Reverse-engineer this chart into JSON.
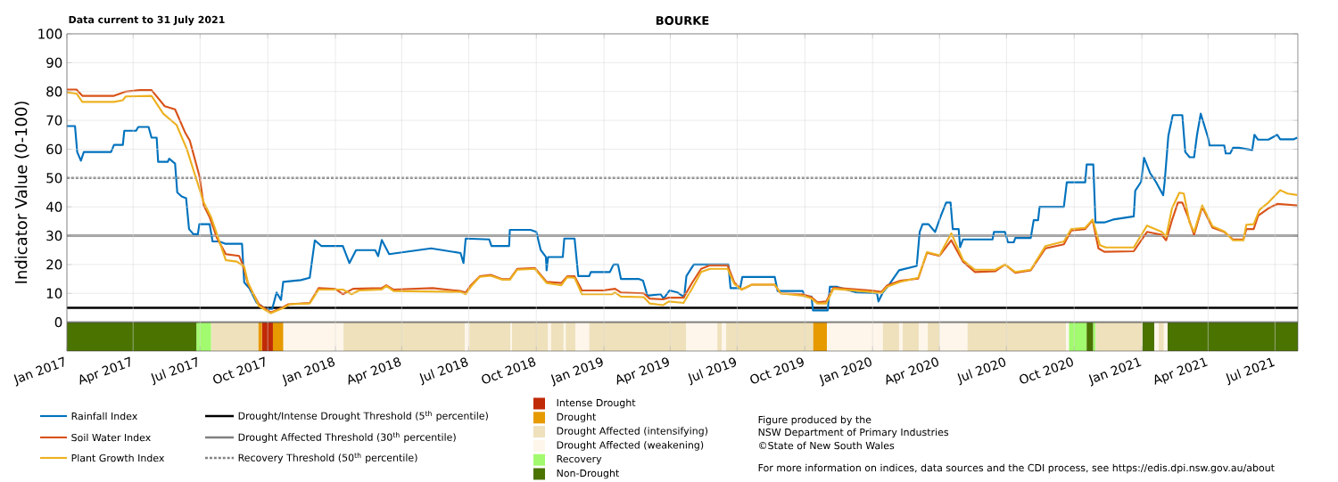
{
  "chart_data": {
    "type": "line",
    "title": "BOURKE",
    "ylabel": "Indicator Value (0-100)",
    "xlim": [
      "2017-01-01",
      "2021-08-01"
    ],
    "ylim": [
      -10,
      100
    ],
    "xticks": [
      {
        "value": "2017-01-01",
        "label": "Jan 2017"
      },
      {
        "value": "2017-04-01",
        "label": "Apr 2017"
      },
      {
        "value": "2017-07-01",
        "label": "Jul 2017"
      },
      {
        "value": "2017-10-01",
        "label": "Oct 2017"
      },
      {
        "value": "2018-01-01",
        "label": "Jan 2018"
      },
      {
        "value": "2018-04-01",
        "label": "Apr 2018"
      },
      {
        "value": "2018-07-01",
        "label": "Jul 2018"
      },
      {
        "value": "2018-10-01",
        "label": "Oct 2018"
      },
      {
        "value": "2019-01-01",
        "label": "Jan 2019"
      },
      {
        "value": "2019-04-01",
        "label": "Apr 2019"
      },
      {
        "value": "2019-07-01",
        "label": "Jul 2019"
      },
      {
        "value": "2019-10-01",
        "label": "Oct 2019"
      },
      {
        "value": "2020-01-01",
        "label": "Jan 2020"
      },
      {
        "value": "2020-04-01",
        "label": "Apr 2020"
      },
      {
        "value": "2020-07-01",
        "label": "Jul 2020"
      },
      {
        "value": "2020-10-01",
        "label": "Oct 2020"
      },
      {
        "value": "2021-01-01",
        "label": "Jan 2021"
      },
      {
        "value": "2021-04-01",
        "label": "Apr 2021"
      },
      {
        "value": "2021-07-01",
        "label": "Jul 2021"
      }
    ],
    "yticks": [
      0,
      10,
      20,
      30,
      40,
      50,
      60,
      70,
      80,
      90,
      100
    ],
    "grid": true,
    "legend": "bottom",
    "marker": "none",
    "series": [
      {
        "name": "Rainfall Index",
        "color": "#0072bd",
        "x": [
          "2017-01-01",
          "2017-01-12",
          "2017-01-15",
          "2017-01-20",
          "2017-01-24",
          "2017-03-02",
          "2017-03-06",
          "2017-03-18",
          "2017-03-20",
          "2017-04-05",
          "2017-04-08",
          "2017-04-22",
          "2017-04-26",
          "2017-05-03",
          "2017-05-05",
          "2017-05-18",
          "2017-05-20",
          "2017-05-28",
          "2017-05-31",
          "2017-06-06",
          "2017-06-12",
          "2017-06-16",
          "2017-06-22",
          "2017-06-28",
          "2017-06-30",
          "2017-07-14",
          "2017-07-18",
          "2017-07-27",
          "2017-08-04",
          "2017-08-27",
          "2017-08-30",
          "2017-09-06",
          "2017-09-16",
          "2017-09-28",
          "2017-10-07",
          "2017-10-13",
          "2017-10-19",
          "2017-10-22",
          "2017-11-15",
          "2017-11-27",
          "2017-11-30",
          "2017-12-04",
          "2017-12-13",
          "2018-01-11",
          "2018-01-20",
          "2018-01-29",
          "2018-02-24",
          "2018-02-28",
          "2018-03-05",
          "2018-03-15",
          "2018-05-11",
          "2018-06-20",
          "2018-06-24",
          "2018-06-27",
          "2018-07-29",
          "2018-08-01",
          "2018-08-25",
          "2018-08-26",
          "2018-09-23",
          "2018-10-01",
          "2018-10-07",
          "2018-10-14",
          "2018-10-15",
          "2018-10-17",
          "2018-11-06",
          "2018-11-08",
          "2018-11-22",
          "2018-11-27",
          "2018-12-12",
          "2018-12-14",
          "2019-01-09",
          "2019-01-14",
          "2019-01-20",
          "2019-01-24",
          "2019-02-17",
          "2019-02-23",
          "2019-03-01",
          "2019-03-19",
          "2019-03-23",
          "2019-03-31",
          "2019-04-11",
          "2019-04-20",
          "2019-04-23",
          "2019-05-03",
          "2019-06-19",
          "2019-06-22",
          "2019-07-05",
          "2019-07-08",
          "2019-08-21",
          "2019-08-25",
          "2019-09-28",
          "2019-10-01",
          "2019-10-10",
          "2019-10-12",
          "2019-11-01",
          "2019-11-04",
          "2019-11-13",
          "2019-12-10",
          "2020-01-07",
          "2020-01-09",
          "2020-01-15",
          "2020-01-23",
          "2020-02-06",
          "2020-03-01",
          "2020-03-05",
          "2020-03-09",
          "2020-03-17",
          "2020-03-26",
          "2020-04-03",
          "2020-04-10",
          "2020-04-16",
          "2020-04-19",
          "2020-04-27",
          "2020-04-29",
          "2020-05-03",
          "2020-06-12",
          "2020-06-14",
          "2020-06-29",
          "2020-07-03",
          "2020-07-11",
          "2020-07-13",
          "2020-08-03",
          "2020-08-07",
          "2020-08-13",
          "2020-08-15",
          "2020-09-17",
          "2020-09-21",
          "2020-10-16",
          "2020-10-18",
          "2020-10-27",
          "2020-10-30",
          "2020-11-11",
          "2020-11-23",
          "2020-12-21",
          "2020-12-23",
          "2020-12-31",
          "2021-01-04",
          "2021-01-12",
          "2021-01-20",
          "2021-01-30",
          "2021-02-01",
          "2021-02-06",
          "2021-02-12",
          "2021-02-25",
          "2021-03-01",
          "2021-03-07",
          "2021-03-13",
          "2021-03-17",
          "2021-03-22",
          "2021-04-01",
          "2021-04-03",
          "2021-04-23",
          "2021-04-25",
          "2021-05-01",
          "2021-05-05",
          "2021-05-13",
          "2021-05-31",
          "2021-06-03",
          "2021-06-08",
          "2021-06-22",
          "2021-07-04",
          "2021-07-08",
          "2021-07-26",
          "2021-07-31"
        ],
        "values": [
          68,
          68,
          59,
          56,
          59,
          59,
          61.5,
          61.5,
          66.4,
          66.4,
          67.7,
          67.7,
          64,
          64,
          55.6,
          55.6,
          56.7,
          55,
          45,
          43.6,
          43,
          32.3,
          30.5,
          30.5,
          34,
          34,
          28,
          28,
          27.2,
          27.2,
          13.8,
          11.8,
          6.7,
          4.6,
          4.6,
          10.3,
          7.7,
          14,
          14.6,
          15.4,
          21,
          28.4,
          26.4,
          26.4,
          20.5,
          25,
          25,
          22.9,
          28.5,
          23.6,
          25.6,
          24,
          20.5,
          29,
          28.7,
          26.4,
          26.4,
          32,
          32,
          31.3,
          25,
          22.6,
          18,
          22.6,
          22.6,
          29,
          29,
          16,
          16,
          17.4,
          17.4,
          20,
          20,
          15,
          15,
          14.4,
          9.2,
          9.7,
          8.2,
          11,
          10.3,
          8.7,
          16,
          20,
          20,
          11.8,
          11.8,
          15.7,
          15.7,
          10.8,
          10.8,
          8.9,
          8.9,
          4.1,
          4.1,
          12.3,
          12.3,
          10.3,
          10,
          7.2,
          10.3,
          12.8,
          18,
          19.5,
          31.3,
          34,
          34,
          31.3,
          37,
          41.5,
          41.5,
          32.3,
          32.3,
          26,
          28.7,
          28.7,
          31.3,
          31.3,
          27.7,
          27.7,
          29.2,
          29.2,
          35.4,
          35.4,
          40,
          40,
          48.5,
          48.5,
          54.7,
          54.7,
          34.6,
          34.6,
          35.6,
          36.7,
          45.6,
          48.7,
          57,
          51.8,
          48.7,
          44,
          48.7,
          64.6,
          71.8,
          71.8,
          59,
          57.2,
          57.2,
          65,
          72.3,
          64,
          61.3,
          61.3,
          58.5,
          58.5,
          60.5,
          60.5,
          59.7,
          65,
          63.3,
          63.3,
          65,
          63.4,
          63.4,
          64
        ]
      },
      {
        "name": "Soil Water Index",
        "color": "#d95319",
        "x": [
          "2017-01-01",
          "2017-01-14",
          "2017-01-22",
          "2017-03-06",
          "2017-03-22",
          "2017-04-10",
          "2017-04-26",
          "2017-05-14",
          "2017-05-28",
          "2017-06-11",
          "2017-06-17",
          "2017-06-30",
          "2017-07-06",
          "2017-07-14",
          "2017-07-24",
          "2017-08-05",
          "2017-08-23",
          "2017-08-28",
          "2017-09-04",
          "2017-09-19",
          "2017-10-05",
          "2017-10-21",
          "2017-10-29",
          "2017-11-27",
          "2017-12-09",
          "2018-01-01",
          "2018-01-11",
          "2018-01-25",
          "2018-03-05",
          "2018-03-11",
          "2018-03-21",
          "2018-05-13",
          "2018-06-20",
          "2018-06-27",
          "2018-07-04",
          "2018-07-16",
          "2018-07-31",
          "2018-08-16",
          "2018-08-26",
          "2018-09-05",
          "2018-09-29",
          "2018-10-15",
          "2018-11-04",
          "2018-11-12",
          "2018-11-22",
          "2018-12-02",
          "2018-12-31",
          "2019-01-16",
          "2019-01-24",
          "2019-02-24",
          "2019-03-04",
          "2019-03-22",
          "2019-03-30",
          "2019-04-19",
          "2019-05-01",
          "2019-05-13",
          "2019-05-25",
          "2019-06-18",
          "2019-06-27",
          "2019-07-07",
          "2019-07-21",
          "2019-08-21",
          "2019-08-29",
          "2019-09-28",
          "2019-10-10",
          "2019-10-18",
          "2019-10-30",
          "2019-11-09",
          "2019-12-29",
          "2020-01-13",
          "2020-01-21",
          "2020-02-08",
          "2020-03-03",
          "2020-03-15",
          "2020-04-01",
          "2020-04-17",
          "2020-05-03",
          "2020-05-19",
          "2020-06-16",
          "2020-06-29",
          "2020-07-13",
          "2020-08-03",
          "2020-08-23",
          "2020-09-17",
          "2020-09-27",
          "2020-10-16",
          "2020-10-26",
          "2020-11-03",
          "2020-11-11",
          "2020-12-21",
          "2021-01-08",
          "2021-01-28",
          "2021-02-03",
          "2021-02-11",
          "2021-02-19",
          "2021-02-25",
          "2021-03-05",
          "2021-03-13",
          "2021-03-24",
          "2021-04-07",
          "2021-04-23",
          "2021-05-05",
          "2021-05-19",
          "2021-05-23",
          "2021-06-02",
          "2021-06-08",
          "2021-06-22",
          "2021-07-04",
          "2021-07-31"
        ],
        "values": [
          80.7,
          80.7,
          78.5,
          78.5,
          80,
          80.5,
          80.5,
          74.9,
          73.8,
          65.6,
          63,
          50.8,
          40.5,
          36.4,
          29.2,
          23.6,
          23,
          20,
          13.3,
          6.2,
          3.4,
          5.1,
          6.2,
          6.7,
          11.8,
          11.5,
          9.7,
          11.6,
          11.8,
          12.8,
          11.3,
          11.8,
          10.8,
          10.3,
          12.8,
          15.9,
          16.4,
          14.9,
          14.9,
          18.5,
          18.8,
          14,
          13.6,
          15.9,
          15.9,
          11,
          11,
          11.6,
          10.3,
          10,
          8.2,
          7.9,
          8.5,
          8.5,
          13.8,
          18.5,
          19.7,
          19.7,
          13.8,
          11.3,
          13,
          13,
          10,
          9.7,
          8.7,
          6.9,
          7.2,
          12,
          11,
          10.5,
          12.8,
          14.4,
          15.1,
          24.1,
          23,
          28.4,
          21,
          17.4,
          17.7,
          20,
          17.1,
          18,
          25.6,
          27,
          31.8,
          32.3,
          35.4,
          25.6,
          24.4,
          24.6,
          31.3,
          30.3,
          28.4,
          35.4,
          41.5,
          41.5,
          36.4,
          30.3,
          40,
          32.8,
          31.3,
          28.7,
          28.7,
          32.3,
          32.3,
          36.9,
          39.5,
          41,
          40.5
        ]
      },
      {
        "name": "Plant Growth Index",
        "color": "#edb120",
        "x": [
          "2017-01-01",
          "2017-01-14",
          "2017-01-22",
          "2017-03-06",
          "2017-03-18",
          "2017-03-22",
          "2017-04-26",
          "2017-05-12",
          "2017-05-30",
          "2017-06-13",
          "2017-06-27",
          "2017-07-06",
          "2017-07-16",
          "2017-07-27",
          "2017-08-05",
          "2017-08-20",
          "2017-08-30",
          "2017-09-04",
          "2017-09-19",
          "2017-10-05",
          "2017-10-21",
          "2017-10-31",
          "2017-11-27",
          "2017-12-09",
          "2018-01-11",
          "2018-01-23",
          "2018-02-02",
          "2018-03-05",
          "2018-03-11",
          "2018-03-21",
          "2018-06-20",
          "2018-06-27",
          "2018-07-04",
          "2018-07-16",
          "2018-07-31",
          "2018-08-16",
          "2018-08-26",
          "2018-09-05",
          "2018-09-29",
          "2018-10-15",
          "2018-11-04",
          "2018-11-12",
          "2018-11-22",
          "2018-12-02",
          "2019-01-12",
          "2019-01-16",
          "2019-01-24",
          "2019-02-24",
          "2019-03-04",
          "2019-03-22",
          "2019-03-30",
          "2019-04-19",
          "2019-05-01",
          "2019-05-13",
          "2019-05-25",
          "2019-06-18",
          "2019-06-27",
          "2019-07-07",
          "2019-07-21",
          "2019-08-21",
          "2019-08-29",
          "2019-09-28",
          "2019-10-10",
          "2019-10-18",
          "2019-10-30",
          "2019-11-09",
          "2019-12-29",
          "2020-01-13",
          "2020-01-21",
          "2020-02-08",
          "2020-03-03",
          "2020-03-15",
          "2020-04-01",
          "2020-04-17",
          "2020-05-03",
          "2020-05-19",
          "2020-06-16",
          "2020-06-29",
          "2020-07-13",
          "2020-08-03",
          "2020-08-23",
          "2020-09-17",
          "2020-09-27",
          "2020-10-16",
          "2020-10-26",
          "2020-11-05",
          "2020-11-13",
          "2020-12-21",
          "2021-01-08",
          "2021-01-28",
          "2021-02-03",
          "2021-02-11",
          "2021-02-21",
          "2021-02-27",
          "2021-03-07",
          "2021-03-13",
          "2021-03-24",
          "2021-04-07",
          "2021-04-23",
          "2021-05-05",
          "2021-05-19",
          "2021-05-23",
          "2021-06-02",
          "2021-06-10",
          "2021-06-22",
          "2021-07-08",
          "2021-07-18",
          "2021-07-31"
        ],
        "values": [
          79.7,
          79.3,
          76.4,
          76.4,
          77,
          78.3,
          78.5,
          72.3,
          68.4,
          60,
          48.7,
          41.5,
          36.4,
          28.2,
          21.5,
          21,
          19.2,
          13.8,
          5.6,
          3.1,
          4.8,
          6.2,
          6.5,
          11.3,
          11.3,
          9.7,
          11,
          11.3,
          12.6,
          10.8,
          10.5,
          9.7,
          12.3,
          15.7,
          16.1,
          14.7,
          14.7,
          18.2,
          18.5,
          13.6,
          12.8,
          15.6,
          15.4,
          9.7,
          9.7,
          10.3,
          8.9,
          8.7,
          6.5,
          5.9,
          7.2,
          6.7,
          11.8,
          17.4,
          18.5,
          18.5,
          13.3,
          11.3,
          13,
          13,
          10,
          9.2,
          8.2,
          6.5,
          6.5,
          11.6,
          10.5,
          10.1,
          12.3,
          14,
          15.4,
          24.3,
          23.2,
          30.8,
          21.5,
          18.2,
          18.2,
          20,
          17.4,
          18.2,
          26.4,
          28,
          32.3,
          32.7,
          35.6,
          26.7,
          25.9,
          25.9,
          33.5,
          31.3,
          29.7,
          39.5,
          44.9,
          44.6,
          34.4,
          31.3,
          40.5,
          33.3,
          31.5,
          28.4,
          28.4,
          33.8,
          34,
          39,
          41.5,
          45.8,
          44.6,
          44.1
        ]
      }
    ],
    "ref_lines": [
      {
        "axis": "y",
        "value": 5,
        "label": "Drought/Intense Drought Threshold (5$^{th}$ percentile)",
        "color": "#000000",
        "line_style": "solid"
      },
      {
        "axis": "y",
        "value": 30,
        "label": "Drought Affected Threshold (30$^{th}$ percentile)",
        "color": "#808080",
        "line_style": "solid"
      },
      {
        "axis": "y",
        "value": 50,
        "label": "Recovery Threshold (50$^{th}$ percentile)",
        "color": "#808080",
        "line_style": "dotted"
      }
    ],
    "bands": [
      {
        "axis": "x",
        "from": "2017-09-23",
        "to": "2017-10-08",
        "label": "Intense Drought",
        "color": "#c02a07"
      },
      {
        "axis": "x",
        "from": "2017-09-18",
        "to": "2017-09-23",
        "label": "Drought",
        "color": "#e69a00"
      },
      {
        "axis": "x",
        "from": "2017-07-16",
        "to": "2017-09-18",
        "label": "Drought Affected (intensifying)",
        "color": "#eee1bc"
      },
      {
        "axis": "x",
        "from": "2017-10-22",
        "to": "2018-01-12",
        "label": "Drought Affected (weakening)",
        "color": "#fef6ea"
      },
      {
        "axis": "x",
        "from": "2017-06-26",
        "to": "2017-07-16",
        "label": "Recovery",
        "color": "#a2fa6e"
      },
      {
        "axis": "x",
        "from": "2017-01-01",
        "to": "2017-06-26",
        "label": "Non-Drought",
        "color": "#4a7300"
      },
      {
        "axis": "x",
        "from": "2017-10-08",
        "to": "2017-10-22",
        "color": "#e69a00"
      },
      {
        "axis": "x",
        "from": "2018-01-12",
        "to": "2018-06-26",
        "color": "#eee1bc"
      },
      {
        "axis": "x",
        "from": "2018-06-26",
        "to": "2018-07-02",
        "color": "#fef6ea"
      },
      {
        "axis": "x",
        "from": "2018-07-02",
        "to": "2018-08-27",
        "color": "#eee1bc"
      },
      {
        "axis": "x",
        "from": "2018-08-27",
        "to": "2018-08-29",
        "color": "#fef6ea"
      },
      {
        "axis": "x",
        "from": "2018-08-29",
        "to": "2018-10-17",
        "color": "#eee1bc"
      },
      {
        "axis": "x",
        "from": "2018-10-17",
        "to": "2018-10-21",
        "color": "#fef6ea"
      },
      {
        "axis": "x",
        "from": "2018-10-21",
        "to": "2018-11-07",
        "color": "#eee1bc"
      },
      {
        "axis": "x",
        "from": "2018-11-07",
        "to": "2018-11-10",
        "color": "#fef6ea"
      },
      {
        "axis": "x",
        "from": "2018-11-10",
        "to": "2018-11-23",
        "color": "#eee1bc"
      },
      {
        "axis": "x",
        "from": "2018-11-23",
        "to": "2018-12-12",
        "color": "#fef6ea"
      },
      {
        "axis": "x",
        "from": "2018-12-12",
        "to": "2019-04-23",
        "color": "#eee1bc"
      },
      {
        "axis": "x",
        "from": "2019-04-23",
        "to": "2019-06-04",
        "color": "#fef6ea"
      },
      {
        "axis": "x",
        "from": "2019-06-04",
        "to": "2019-06-10",
        "color": "#eee1bc"
      },
      {
        "axis": "x",
        "from": "2019-06-10",
        "to": "2019-06-16",
        "color": "#fef6ea"
      },
      {
        "axis": "x",
        "from": "2019-06-16",
        "to": "2019-10-12",
        "color": "#eee1bc"
      },
      {
        "axis": "x",
        "from": "2019-10-12",
        "to": "2019-10-31",
        "color": "#e69a00"
      },
      {
        "axis": "x",
        "from": "2019-10-31",
        "to": "2020-01-15",
        "color": "#fef6ea"
      },
      {
        "axis": "x",
        "from": "2020-01-15",
        "to": "2020-02-06",
        "color": "#eee1bc"
      },
      {
        "axis": "x",
        "from": "2020-02-06",
        "to": "2020-02-11",
        "color": "#fef6ea"
      },
      {
        "axis": "x",
        "from": "2020-02-11",
        "to": "2020-03-04",
        "color": "#eee1bc"
      },
      {
        "axis": "x",
        "from": "2020-03-04",
        "to": "2020-03-16",
        "color": "#fef6ea"
      },
      {
        "axis": "x",
        "from": "2020-03-16",
        "to": "2020-04-01",
        "color": "#eee1bc"
      },
      {
        "axis": "x",
        "from": "2020-04-01",
        "to": "2020-05-09",
        "color": "#fef6ea"
      },
      {
        "axis": "x",
        "from": "2020-05-09",
        "to": "2020-09-20",
        "color": "#eee1bc"
      },
      {
        "axis": "x",
        "from": "2020-09-20",
        "to": "2020-09-24",
        "color": "#fef6ea"
      },
      {
        "axis": "x",
        "from": "2020-09-24",
        "to": "2020-10-18",
        "color": "#a2fa6e"
      },
      {
        "axis": "x",
        "from": "2020-10-18",
        "to": "2020-10-27",
        "color": "#4a7300"
      },
      {
        "axis": "x",
        "from": "2020-10-27",
        "to": "2020-10-30",
        "color": "#a2fa6e"
      },
      {
        "axis": "x",
        "from": "2020-10-30",
        "to": "2021-01-02",
        "color": "#eee1bc"
      },
      {
        "axis": "x",
        "from": "2021-01-02",
        "to": "2021-01-18",
        "color": "#4a7300"
      },
      {
        "axis": "x",
        "from": "2021-01-18",
        "to": "2021-01-24",
        "color": "#fef6ea"
      },
      {
        "axis": "x",
        "from": "2021-01-24",
        "to": "2021-01-31",
        "color": "#eee1bc"
      },
      {
        "axis": "x",
        "from": "2021-01-31",
        "to": "2021-02-05",
        "color": "#fef6ea"
      },
      {
        "axis": "x",
        "from": "2021-02-05",
        "to": "2021-08-01",
        "color": "#4a7300"
      }
    ],
    "annotations": [
      "Data current to 31 July 2021",
      "Figure produced by the",
      "NSW Department of Primary Industries",
      "©State of New South Wales",
      "For more information on indices, data sources and the CDI process, see https://edis.dpi.nsw.gov.au/about"
    ]
  }
}
